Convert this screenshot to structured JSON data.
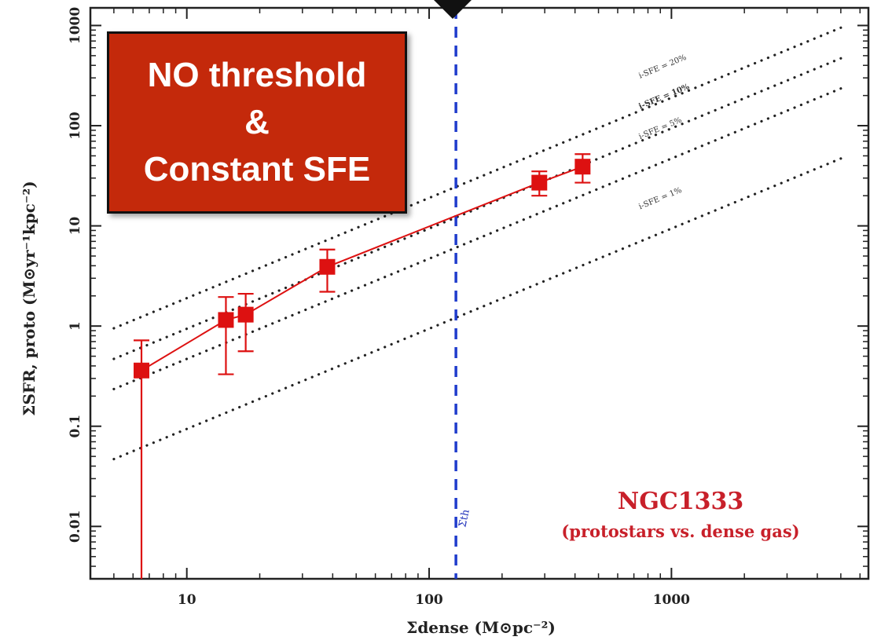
{
  "callout": {
    "line1": "NO threshold",
    "line2": "&",
    "line3": "Constant SFE"
  },
  "annotation": {
    "title": "NGC1333",
    "subtitle": "(protostars vs. dense gas)",
    "threshold_label": "Σth"
  },
  "colors": {
    "data": "#dd1111",
    "threshold": "#1f3ccc",
    "callout_bg": "#c4290b",
    "annotation_text": "#c8202a",
    "ref_lines": "#222222"
  },
  "chart_data": {
    "type": "scatter",
    "title": "",
    "xlabel": "Σdense (M⊙pc⁻²)",
    "ylabel": "ΣSFR, proto (M⊙yr⁻¹kpc⁻²)",
    "xscale": "log",
    "yscale": "log",
    "xlim": [
      4,
      6500
    ],
    "ylim": [
      0.003,
      1500
    ],
    "x_ticks": [
      {
        "value": 10,
        "label": "10"
      },
      {
        "value": 100,
        "label": "100"
      },
      {
        "value": 1000,
        "label": "1000"
      }
    ],
    "y_ticks": [
      {
        "value": 0.01,
        "label": "0.01"
      },
      {
        "value": 0.1,
        "label": "0.1"
      },
      {
        "value": 1,
        "label": "1"
      },
      {
        "value": 10,
        "label": "10"
      },
      {
        "value": 100,
        "label": "100"
      },
      {
        "value": 1000,
        "label": "1000"
      }
    ],
    "series": [
      {
        "points": [
          {
            "x": 6.5,
            "y": 0.36,
            "y_low": 0.003,
            "y_high": 0.72
          },
          {
            "x": 14.5,
            "y": 1.15,
            "y_low": 0.33,
            "y_high": 1.95
          },
          {
            "x": 17.5,
            "y": 1.3,
            "y_low": 0.56,
            "y_high": 2.1
          },
          {
            "x": 38,
            "y": 3.9,
            "y_low": 2.2,
            "y_high": 5.8
          },
          {
            "x": 285,
            "y": 27,
            "y_low": 20,
            "y_high": 35
          },
          {
            "x": 430,
            "y": 39,
            "y_low": 27,
            "y_high": 52
          }
        ]
      }
    ],
    "reference_lines": [
      {
        "label": "i-SFE = 20%",
        "x_range": [
          5,
          5000
        ],
        "y_range": [
          0.95,
          950
        ],
        "bold": false
      },
      {
        "label": "i-SFE = 10%",
        "x_range": [
          5,
          5000
        ],
        "y_range": [
          0.47,
          470
        ],
        "bold": true
      },
      {
        "label": "i-SFE = 5%",
        "x_range": [
          5,
          5000
        ],
        "y_range": [
          0.235,
          235
        ],
        "bold": false
      },
      {
        "label": "i-SFE = 1%",
        "x_range": [
          5,
          5000
        ],
        "y_range": [
          0.047,
          47
        ],
        "bold": false
      }
    ],
    "threshold_line": {
      "x": 129
    },
    "grid": false
  }
}
